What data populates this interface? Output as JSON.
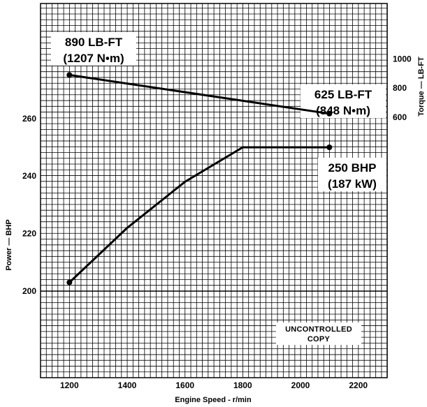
{
  "chart_data": {
    "type": "line",
    "x_axis": {
      "label": "Engine Speed - r/min",
      "range": [
        1100,
        2300
      ],
      "ticks": [
        1200,
        1400,
        1600,
        1800,
        2000,
        2200
      ]
    },
    "y_axis_power": {
      "label": "Power — BHP",
      "side": "left",
      "ticks": [
        200,
        220,
        240,
        260
      ]
    },
    "y_axis_torque": {
      "label": "Torque — LB-FT",
      "side": "right",
      "ticks": [
        600,
        800,
        1000
      ]
    },
    "grid": true,
    "series": [
      {
        "axis": "torque",
        "x": [
          1200,
          2100
        ],
        "y": [
          890,
          625
        ],
        "color": "#000000"
      },
      {
        "axis": "power",
        "x": [
          1200,
          1400,
          1600,
          1800,
          2100
        ],
        "y": [
          203,
          222,
          238,
          250,
          250
        ],
        "color": "#000000"
      }
    ],
    "annotations": [
      {
        "id": "torque_max",
        "lines": [
          "890 LB-FT",
          "(1207 N•m)"
        ]
      },
      {
        "id": "torque_rated",
        "lines": [
          "625 LB-FT",
          "(848 N•m)"
        ]
      },
      {
        "id": "power_rated",
        "lines": [
          "250 BHP",
          "(187 kW)"
        ]
      }
    ],
    "stamp": [
      "UNCONTROLLED",
      "COPY"
    ]
  }
}
